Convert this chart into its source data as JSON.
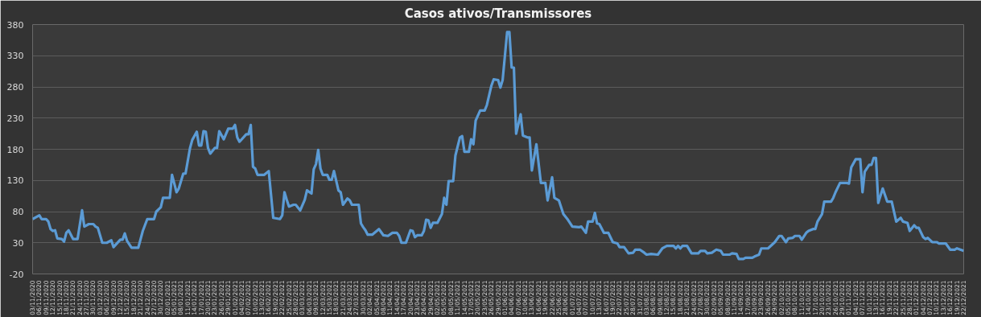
{
  "chart_data": {
    "type": "line",
    "title": "Casos ativos/Transmissores",
    "x": [
      "2020-11-03",
      "2020-11-06",
      "2020-11-07",
      "2020-11-09",
      "2020-11-10",
      "2020-11-11",
      "2020-11-12",
      "2020-11-13",
      "2020-11-14",
      "2020-11-16",
      "2020-11-17",
      "2020-11-18",
      "2020-11-19",
      "2020-11-21",
      "2020-11-23",
      "2020-11-25",
      "2020-11-26",
      "2020-11-28",
      "2020-11-30",
      "2020-12-01",
      "2020-12-02",
      "2020-12-04",
      "2020-12-06",
      "2020-12-08",
      "2020-12-09",
      "2020-12-12",
      "2020-12-13",
      "2020-12-14",
      "2020-12-15",
      "2020-12-17",
      "2020-12-20",
      "2020-12-22",
      "2020-12-24",
      "2020-12-27",
      "2020-12-28",
      "2020-12-30",
      "2020-12-31",
      "2021-01-03",
      "2021-01-04",
      "2021-01-06",
      "2021-01-07",
      "2021-01-09",
      "2021-01-10",
      "2021-01-12",
      "2021-01-13",
      "2021-01-15",
      "2021-01-16",
      "2021-01-17",
      "2021-01-18",
      "2021-01-19",
      "2021-01-20",
      "2021-01-21",
      "2021-01-23",
      "2021-01-24",
      "2021-01-25",
      "2021-01-27",
      "2021-01-29",
      "2021-01-31",
      "2021-02-01",
      "2021-02-02",
      "2021-02-03",
      "2021-02-06",
      "2021-02-07",
      "2021-02-08",
      "2021-02-09",
      "2021-02-10",
      "2021-02-11",
      "2021-02-14",
      "2021-02-16",
      "2021-02-18",
      "2021-02-21",
      "2021-02-22",
      "2021-02-23",
      "2021-02-24",
      "2021-02-25",
      "2021-02-27",
      "2021-02-28",
      "2021-03-02",
      "2021-03-04",
      "2021-03-05",
      "2021-03-07",
      "2021-03-08",
      "2021-03-09",
      "2021-03-10",
      "2021-03-11",
      "2021-03-12",
      "2021-03-14",
      "2021-03-15",
      "2021-03-16",
      "2021-03-17",
      "2021-03-19",
      "2021-03-20",
      "2021-03-21",
      "2021-03-23",
      "2021-03-24",
      "2021-03-25",
      "2021-03-28",
      "2021-03-29",
      "2021-03-30",
      "2021-03-31",
      "2021-04-01",
      "2021-04-03",
      "2021-04-06",
      "2021-04-08",
      "2021-04-10",
      "2021-04-12",
      "2021-04-14",
      "2021-04-15",
      "2021-04-16",
      "2021-04-18",
      "2021-04-20",
      "2021-04-21",
      "2021-04-22",
      "2021-04-23",
      "2021-04-25",
      "2021-04-26",
      "2021-04-27",
      "2021-04-28",
      "2021-04-29",
      "2021-04-30",
      "2021-05-02",
      "2021-05-04",
      "2021-05-05",
      "2021-05-06",
      "2021-05-07",
      "2021-05-09",
      "2021-05-10",
      "2021-05-12",
      "2021-05-13",
      "2021-05-14",
      "2021-05-16",
      "2021-05-17",
      "2021-05-18",
      "2021-05-19",
      "2021-05-21",
      "2021-05-23",
      "2021-05-24",
      "2021-05-26",
      "2021-05-27",
      "2021-05-29",
      "2021-05-30",
      "2021-05-31",
      "2021-06-02",
      "2021-06-03",
      "2021-06-04",
      "2021-06-05",
      "2021-06-06",
      "2021-06-08",
      "2021-06-09",
      "2021-06-11",
      "2021-06-12",
      "2021-06-13",
      "2021-06-15",
      "2021-06-17",
      "2021-06-19",
      "2021-06-20",
      "2021-06-22",
      "2021-06-23",
      "2021-06-25",
      "2021-06-27",
      "2021-06-29",
      "2021-07-01",
      "2021-07-04",
      "2021-07-05",
      "2021-07-07",
      "2021-07-08",
      "2021-07-10",
      "2021-07-11",
      "2021-07-12",
      "2021-07-13",
      "2021-07-15",
      "2021-07-17",
      "2021-07-19",
      "2021-07-21",
      "2021-07-22",
      "2021-07-24",
      "2021-07-26",
      "2021-07-28",
      "2021-07-29",
      "2021-07-31",
      "2021-08-02",
      "2021-08-03",
      "2021-08-05",
      "2021-08-08",
      "2021-08-10",
      "2021-08-12",
      "2021-08-15",
      "2021-08-16",
      "2021-08-17",
      "2021-08-18",
      "2021-08-19",
      "2021-08-21",
      "2021-08-23",
      "2021-08-26",
      "2021-08-27",
      "2021-08-29",
      "2021-08-30",
      "2021-09-01",
      "2021-09-03",
      "2021-09-05",
      "2021-09-06",
      "2021-09-09",
      "2021-09-10",
      "2021-09-12",
      "2021-09-13",
      "2021-09-15",
      "2021-09-16",
      "2021-09-19",
      "2021-09-20",
      "2021-09-22",
      "2021-09-23",
      "2021-09-26",
      "2021-09-29",
      "2021-10-01",
      "2021-10-02",
      "2021-10-04",
      "2021-10-05",
      "2021-10-07",
      "2021-10-08",
      "2021-10-10",
      "2021-10-11",
      "2021-10-13",
      "2021-10-14",
      "2021-10-16",
      "2021-10-17",
      "2021-10-18",
      "2021-10-20",
      "2021-10-21",
      "2021-10-24",
      "2021-10-25",
      "2021-10-26",
      "2021-10-28",
      "2021-10-31",
      "2021-11-01",
      "2021-11-02",
      "2021-11-04",
      "2021-11-06",
      "2021-11-07",
      "2021-11-08",
      "2021-11-10",
      "2021-11-11",
      "2021-11-12",
      "2021-11-13",
      "2021-11-14",
      "2021-11-16",
      "2021-11-18",
      "2021-11-20",
      "2021-11-22",
      "2021-11-24",
      "2021-11-25",
      "2021-11-27",
      "2021-11-28",
      "2021-11-30",
      "2021-12-01",
      "2021-12-02",
      "2021-12-04",
      "2021-12-05",
      "2021-12-06",
      "2021-12-08",
      "2021-12-10",
      "2021-12-11",
      "2021-12-14",
      "2021-12-16",
      "2021-12-18",
      "2021-12-19",
      "2021-12-22"
    ],
    "series": [
      {
        "color": "#5b9bd5",
        "values": [
          68,
          74,
          68,
          68,
          64,
          52,
          49,
          50,
          37,
          36,
          32,
          46,
          50,
          36,
          36,
          82,
          56,
          60,
          60,
          56,
          54,
          30,
          30,
          34,
          23,
          35,
          35,
          45,
          33,
          22,
          22,
          49,
          68,
          68,
          80,
          87,
          102,
          102,
          139,
          111,
          117,
          141,
          141,
          182,
          195,
          208,
          186,
          186,
          209,
          208,
          182,
          173,
          182,
          182,
          209,
          196,
          213,
          213,
          219,
          199,
          192,
          204,
          204,
          219,
          152,
          149,
          139,
          139,
          145,
          70,
          68,
          74,
          111,
          99,
          88,
          91,
          91,
          82,
          99,
          114,
          109,
          148,
          156,
          179,
          149,
          139,
          139,
          131,
          131,
          145,
          114,
          111,
          91,
          101,
          98,
          91,
          91,
          61,
          55,
          50,
          43,
          43,
          52,
          42,
          41,
          46,
          46,
          41,
          30,
          30,
          50,
          49,
          39,
          42,
          42,
          49,
          67,
          66,
          54,
          62,
          62,
          76,
          102,
          91,
          129,
          129,
          170,
          199,
          201,
          176,
          176,
          196,
          188,
          226,
          242,
          242,
          251,
          282,
          292,
          291,
          279,
          291,
          368,
          368,
          311,
          311,
          205,
          236,
          202,
          199,
          199,
          146,
          188,
          126,
          126,
          98,
          135,
          102,
          98,
          76,
          67,
          56,
          55,
          56,
          46,
          64,
          64,
          78,
          61,
          60,
          46,
          46,
          31,
          29,
          23,
          23,
          13,
          14,
          19,
          19,
          14,
          11,
          12,
          11,
          21,
          25,
          25,
          21,
          25,
          21,
          25,
          25,
          13,
          13,
          17,
          17,
          13,
          14,
          19,
          17,
          11,
          11,
          13,
          12,
          4,
          4,
          6,
          6,
          8,
          11,
          21,
          21,
          31,
          41,
          41,
          31,
          37,
          38,
          41,
          41,
          35,
          46,
          49,
          52,
          52,
          64,
          76,
          96,
          96,
          102,
          111,
          126,
          126,
          125,
          151,
          164,
          164,
          111,
          144,
          155,
          155,
          166,
          166,
          94,
          117,
          96,
          96,
          64,
          70,
          64,
          62,
          49,
          58,
          54,
          54,
          39,
          36,
          38,
          31,
          31,
          29,
          29,
          19,
          19,
          21,
          17
        ]
      }
    ],
    "xlim": [
      "2020-11-03",
      "2021-12-22"
    ],
    "xticks": [
      {
        "value": "2020-11-03",
        "label": "03/11/2020"
      },
      {
        "value": "2020-11-06",
        "label": "06/11/2020"
      },
      {
        "value": "2020-11-09",
        "label": "09/11/2020"
      },
      {
        "value": "2020-11-12",
        "label": "12/11/2020"
      },
      {
        "value": "2020-11-15",
        "label": "15/11/2020"
      },
      {
        "value": "2020-11-18",
        "label": "18/11/2020"
      },
      {
        "value": "2020-11-21",
        "label": "21/11/2020"
      },
      {
        "value": "2020-11-24",
        "label": "24/11/2020"
      },
      {
        "value": "2020-11-27",
        "label": "27/11/2020"
      },
      {
        "value": "2020-11-30",
        "label": "30/11/2020"
      },
      {
        "value": "2020-12-03",
        "label": "03/12/2020"
      },
      {
        "value": "2020-12-06",
        "label": "06/12/2020"
      },
      {
        "value": "2020-12-09",
        "label": "09/12/2020"
      },
      {
        "value": "2020-12-12",
        "label": "12/12/2020"
      },
      {
        "value": "2020-12-15",
        "label": "15/12/2020"
      },
      {
        "value": "2020-12-18",
        "label": "18/12/2020"
      },
      {
        "value": "2020-12-21",
        "label": "21/12/2020"
      },
      {
        "value": "2020-12-24",
        "label": "24/12/2020"
      },
      {
        "value": "2020-12-27",
        "label": "27/12/2020"
      },
      {
        "value": "2020-12-30",
        "label": "30/12/2020"
      },
      {
        "value": "2021-01-02",
        "label": "02/01/2021"
      },
      {
        "value": "2021-01-05",
        "label": "05/01/2021"
      },
      {
        "value": "2021-01-08",
        "label": "08/01/2021"
      },
      {
        "value": "2021-01-11",
        "label": "11/01/2021"
      },
      {
        "value": "2021-01-14",
        "label": "14/01/2021"
      },
      {
        "value": "2021-01-17",
        "label": "17/01/2021"
      },
      {
        "value": "2021-01-20",
        "label": "20/01/2021"
      },
      {
        "value": "2021-01-23",
        "label": "23/01/2021"
      },
      {
        "value": "2021-01-26",
        "label": "26/01/2021"
      },
      {
        "value": "2021-01-29",
        "label": "29/01/2021"
      },
      {
        "value": "2021-02-01",
        "label": "01/02/2021"
      },
      {
        "value": "2021-02-04",
        "label": "04/02/2021"
      },
      {
        "value": "2021-02-07",
        "label": "07/02/2021"
      },
      {
        "value": "2021-02-10",
        "label": "10/02/2021"
      },
      {
        "value": "2021-02-13",
        "label": "13/02/2021"
      },
      {
        "value": "2021-02-16",
        "label": "16/02/2021"
      },
      {
        "value": "2021-02-19",
        "label": "19/02/2021"
      },
      {
        "value": "2021-02-22",
        "label": "22/02/2021"
      },
      {
        "value": "2021-02-25",
        "label": "25/02/2021"
      },
      {
        "value": "2021-02-28",
        "label": "28/02/2021"
      },
      {
        "value": "2021-03-03",
        "label": "03/03/2021"
      },
      {
        "value": "2021-03-06",
        "label": "06/03/2021"
      },
      {
        "value": "2021-03-09",
        "label": "09/03/2021"
      },
      {
        "value": "2021-03-12",
        "label": "12/03/2021"
      },
      {
        "value": "2021-03-15",
        "label": "15/03/2021"
      },
      {
        "value": "2021-03-18",
        "label": "18/03/2021"
      },
      {
        "value": "2021-03-21",
        "label": "21/03/2021"
      },
      {
        "value": "2021-03-24",
        "label": "24/03/2021"
      },
      {
        "value": "2021-03-27",
        "label": "27/03/2021"
      },
      {
        "value": "2021-03-30",
        "label": "30/03/2021"
      },
      {
        "value": "2021-04-02",
        "label": "02/04/2021"
      },
      {
        "value": "2021-04-05",
        "label": "05/04/2021"
      },
      {
        "value": "2021-04-08",
        "label": "08/04/2021"
      },
      {
        "value": "2021-04-11",
        "label": "11/04/2021"
      },
      {
        "value": "2021-04-14",
        "label": "14/04/2021"
      },
      {
        "value": "2021-04-17",
        "label": "17/04/2021"
      },
      {
        "value": "2021-04-20",
        "label": "20/04/2021"
      },
      {
        "value": "2021-04-23",
        "label": "23/04/2021"
      },
      {
        "value": "2021-04-26",
        "label": "26/04/2021"
      },
      {
        "value": "2021-04-29",
        "label": "29/04/2021"
      },
      {
        "value": "2021-05-02",
        "label": "02/05/2021"
      },
      {
        "value": "2021-05-05",
        "label": "05/05/2021"
      },
      {
        "value": "2021-05-08",
        "label": "08/05/2021"
      },
      {
        "value": "2021-05-11",
        "label": "11/05/2021"
      },
      {
        "value": "2021-05-14",
        "label": "14/05/2021"
      },
      {
        "value": "2021-05-17",
        "label": "17/05/2021"
      },
      {
        "value": "2021-05-20",
        "label": "20/05/2021"
      },
      {
        "value": "2021-05-23",
        "label": "23/05/2021"
      },
      {
        "value": "2021-05-26",
        "label": "26/05/2021"
      },
      {
        "value": "2021-05-29",
        "label": "29/05/2021"
      },
      {
        "value": "2021-06-01",
        "label": "01/06/2021"
      },
      {
        "value": "2021-06-04",
        "label": "04/06/2021"
      },
      {
        "value": "2021-06-07",
        "label": "07/06/2021"
      },
      {
        "value": "2021-06-10",
        "label": "10/06/2021"
      },
      {
        "value": "2021-06-13",
        "label": "13/06/2021"
      },
      {
        "value": "2021-06-16",
        "label": "16/06/2021"
      },
      {
        "value": "2021-06-19",
        "label": "19/06/2021"
      },
      {
        "value": "2021-06-22",
        "label": "22/06/2021"
      },
      {
        "value": "2021-06-25",
        "label": "25/06/2021"
      },
      {
        "value": "2021-06-28",
        "label": "28/06/2021"
      },
      {
        "value": "2021-07-01",
        "label": "01/07/2021"
      },
      {
        "value": "2021-07-04",
        "label": "04/07/2021"
      },
      {
        "value": "2021-07-07",
        "label": "07/07/2021"
      },
      {
        "value": "2021-07-10",
        "label": "10/07/2021"
      },
      {
        "value": "2021-07-13",
        "label": "13/07/2021"
      },
      {
        "value": "2021-07-16",
        "label": "16/07/2021"
      },
      {
        "value": "2021-07-19",
        "label": "19/07/2021"
      },
      {
        "value": "2021-07-22",
        "label": "22/07/2021"
      },
      {
        "value": "2021-07-25",
        "label": "25/07/2021"
      },
      {
        "value": "2021-07-28",
        "label": "28/07/2021"
      },
      {
        "value": "2021-07-31",
        "label": "31/07/2021"
      },
      {
        "value": "2021-08-03",
        "label": "03/08/2021"
      },
      {
        "value": "2021-08-06",
        "label": "06/08/2021"
      },
      {
        "value": "2021-08-09",
        "label": "09/08/2021"
      },
      {
        "value": "2021-08-12",
        "label": "12/08/2021"
      },
      {
        "value": "2021-08-15",
        "label": "15/08/2021"
      },
      {
        "value": "2021-08-18",
        "label": "18/08/2021"
      },
      {
        "value": "2021-08-21",
        "label": "21/08/2021"
      },
      {
        "value": "2021-08-24",
        "label": "24/08/2021"
      },
      {
        "value": "2021-08-27",
        "label": "27/08/2021"
      },
      {
        "value": "2021-08-30",
        "label": "30/08/2021"
      },
      {
        "value": "2021-09-02",
        "label": "02/09/2021"
      },
      {
        "value": "2021-09-05",
        "label": "05/09/2021"
      },
      {
        "value": "2021-09-08",
        "label": "08/09/2021"
      },
      {
        "value": "2021-09-11",
        "label": "11/09/2021"
      },
      {
        "value": "2021-09-14",
        "label": "14/09/2021"
      },
      {
        "value": "2021-09-17",
        "label": "17/09/2021"
      },
      {
        "value": "2021-09-20",
        "label": "20/09/2021"
      },
      {
        "value": "2021-09-23",
        "label": "23/09/2021"
      },
      {
        "value": "2021-09-26",
        "label": "26/09/2021"
      },
      {
        "value": "2021-09-29",
        "label": "29/09/2021"
      },
      {
        "value": "2021-10-02",
        "label": "02/10/2021"
      },
      {
        "value": "2021-10-05",
        "label": "05/10/2021"
      },
      {
        "value": "2021-10-08",
        "label": "08/10/2021"
      },
      {
        "value": "2021-10-11",
        "label": "11/10/2021"
      },
      {
        "value": "2021-10-14",
        "label": "14/10/2021"
      },
      {
        "value": "2021-10-17",
        "label": "17/10/2021"
      },
      {
        "value": "2021-10-20",
        "label": "20/10/2021"
      },
      {
        "value": "2021-10-23",
        "label": "23/10/2021"
      },
      {
        "value": "2021-10-26",
        "label": "26/10/2021"
      },
      {
        "value": "2021-10-29",
        "label": "29/10/2021"
      },
      {
        "value": "2021-11-01",
        "label": "01/11/2021"
      },
      {
        "value": "2021-11-04",
        "label": "04/11/2021"
      },
      {
        "value": "2021-11-07",
        "label": "07/11/2021"
      },
      {
        "value": "2021-11-10",
        "label": "10/11/2021"
      },
      {
        "value": "2021-11-13",
        "label": "13/11/2021"
      },
      {
        "value": "2021-11-16",
        "label": "16/11/2021"
      },
      {
        "value": "2021-11-19",
        "label": "19/11/2021"
      },
      {
        "value": "2021-11-22",
        "label": "22/11/2021"
      },
      {
        "value": "2021-11-25",
        "label": "25/11/2021"
      },
      {
        "value": "2021-11-28",
        "label": "28/11/2021"
      },
      {
        "value": "2021-12-01",
        "label": "01/12/2021"
      },
      {
        "value": "2021-12-04",
        "label": "04/12/2021"
      },
      {
        "value": "2021-12-07",
        "label": "07/12/2021"
      },
      {
        "value": "2021-12-10",
        "label": "10/12/2021"
      },
      {
        "value": "2021-12-13",
        "label": "13/12/2021"
      },
      {
        "value": "2021-12-16",
        "label": "16/12/2021"
      },
      {
        "value": "2021-12-19",
        "label": "19/12/2021"
      },
      {
        "value": "2021-12-22",
        "label": "22/12/2021"
      }
    ],
    "ylim": [
      -20,
      380
    ],
    "yticks": [
      -20,
      30,
      80,
      130,
      180,
      230,
      280,
      330,
      380
    ],
    "grid": "y",
    "marker": "none",
    "line_style": "solid"
  }
}
